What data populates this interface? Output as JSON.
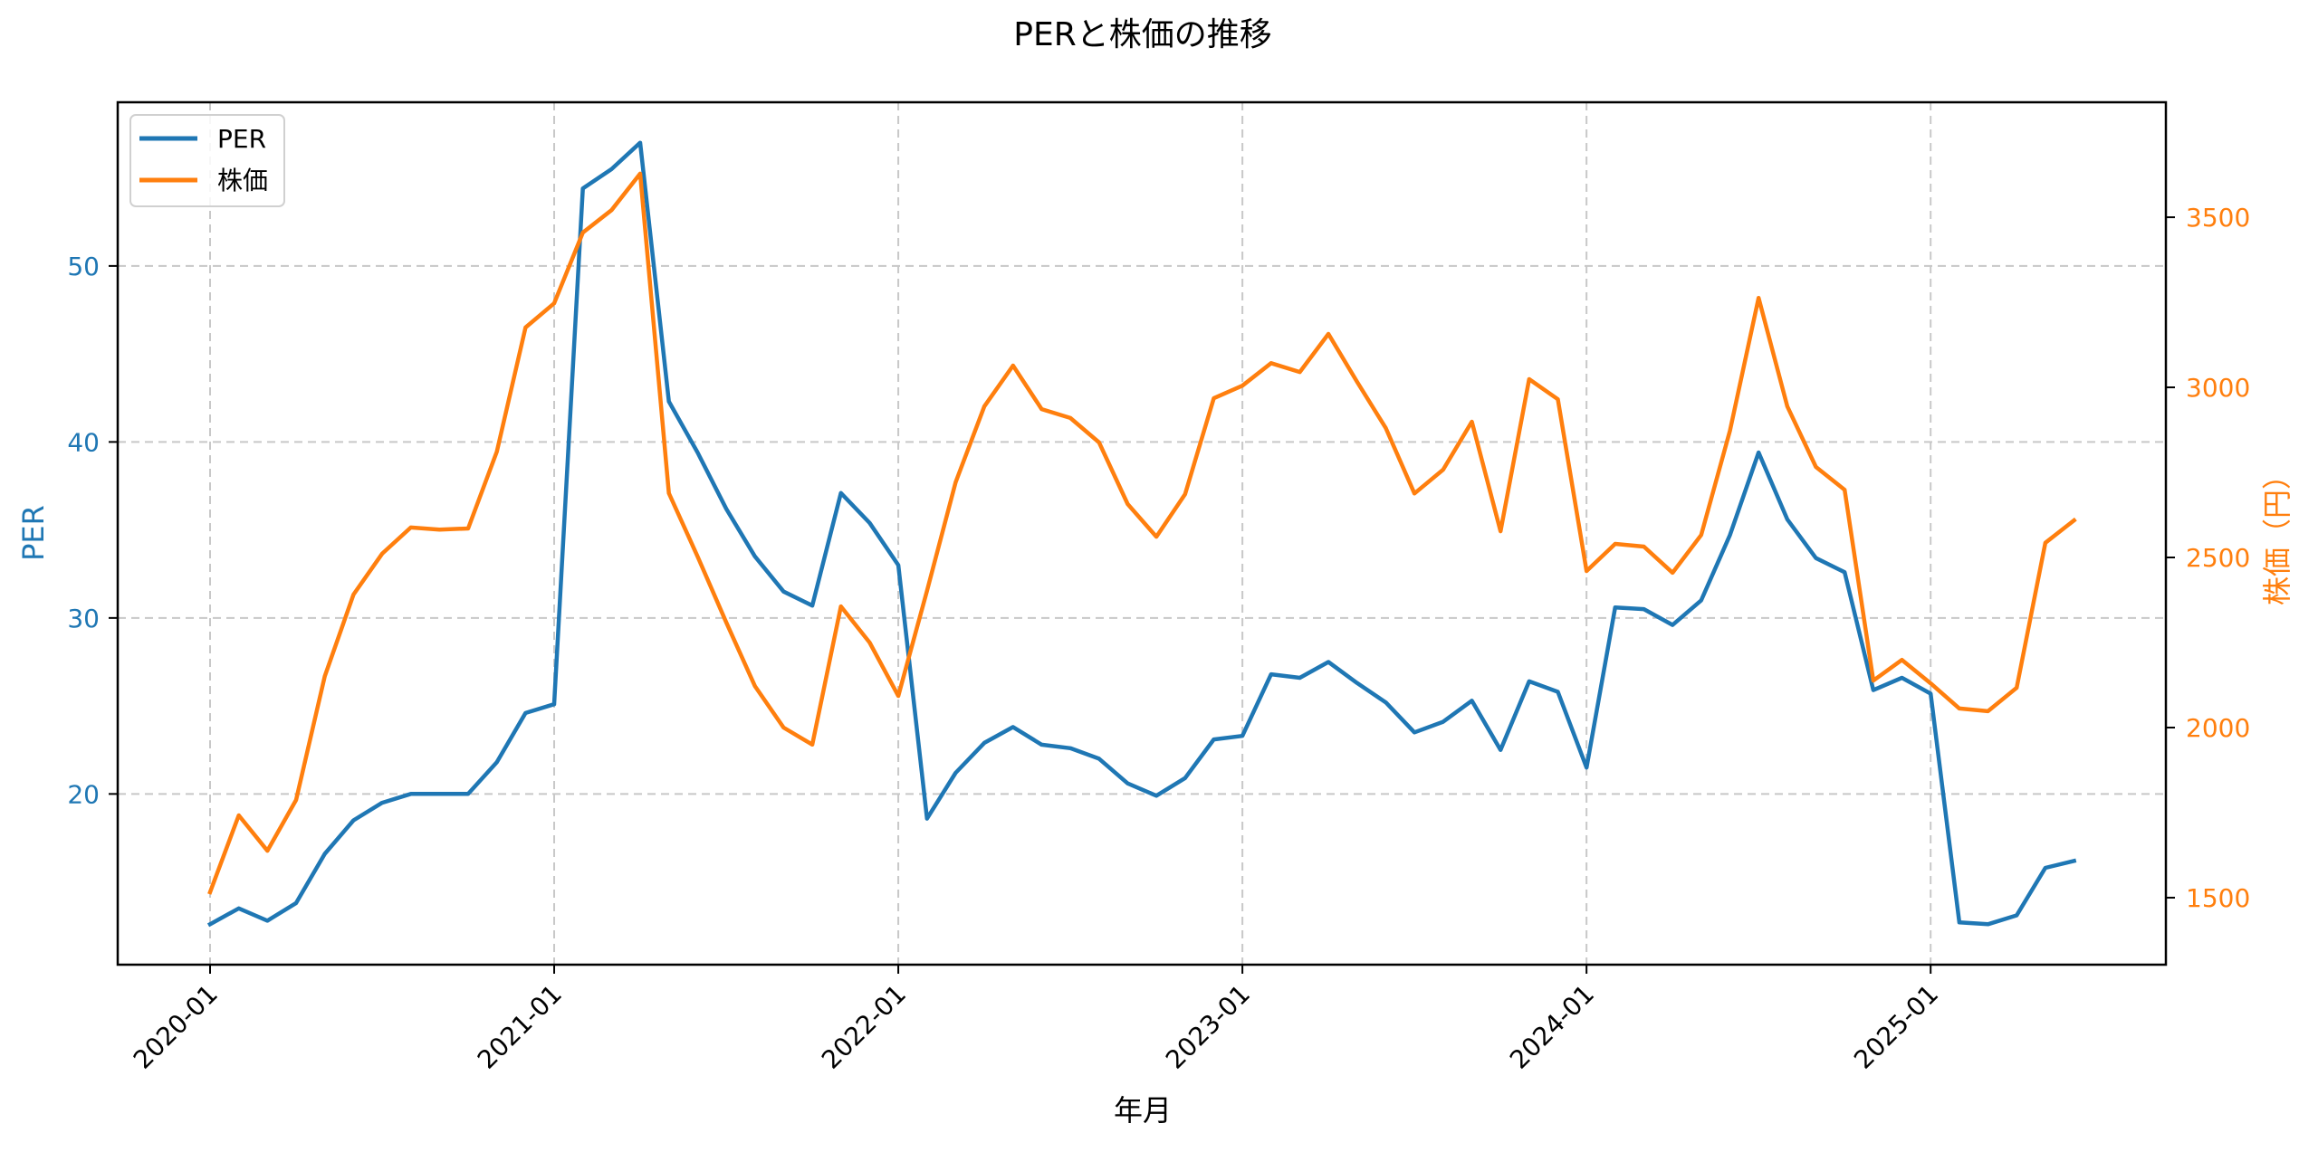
{
  "title": "PERと株価の推移",
  "colors": {
    "per": "#1f77b4",
    "price": "#ff7f0e",
    "grid": "#c8c8c8",
    "axis": "#000000"
  },
  "legend": {
    "position": "upper left",
    "entries": [
      {
        "label": "PER",
        "color": "#1f77b4"
      },
      {
        "label": "株価",
        "color": "#ff7f0e"
      }
    ]
  },
  "axes": {
    "xlabel": "年月",
    "ylabel_left": "PER",
    "ylabel_right": "株価（円）"
  },
  "chart_data": {
    "type": "line",
    "title": "PERと株価の推移",
    "xlabel": "年月",
    "ylabel": "PER",
    "ylabel_secondary": "株価（円）",
    "grid": true,
    "legend_position": "upper left",
    "x_tick_labels": [
      "2020-01",
      "2021-01",
      "2022-01",
      "2023-01",
      "2024-01",
      "2025-01"
    ],
    "y_left_ticks": [
      20,
      30,
      40,
      50
    ],
    "y_right_ticks": [
      1500,
      2000,
      2500,
      3000,
      3500
    ],
    "ylim_left": [
      10.3,
      59.3
    ],
    "ylim_right": [
      1303,
      3838
    ],
    "x": [
      "2020-01",
      "2020-02",
      "2020-03",
      "2020-04",
      "2020-05",
      "2020-06",
      "2020-07",
      "2020-08",
      "2020-09",
      "2020-10",
      "2020-11",
      "2020-12",
      "2021-01",
      "2021-02",
      "2021-03",
      "2021-04",
      "2021-05",
      "2021-06",
      "2021-07",
      "2021-08",
      "2021-09",
      "2021-10",
      "2021-11",
      "2021-12",
      "2022-01",
      "2022-02",
      "2022-03",
      "2022-04",
      "2022-05",
      "2022-06",
      "2022-07",
      "2022-08",
      "2022-09",
      "2022-10",
      "2022-11",
      "2022-12",
      "2023-01",
      "2023-02",
      "2023-03",
      "2023-04",
      "2023-05",
      "2023-06",
      "2023-07",
      "2023-08",
      "2023-09",
      "2023-10",
      "2023-11",
      "2023-12",
      "2024-01",
      "2024-02",
      "2024-03",
      "2024-04",
      "2024-05",
      "2024-06",
      "2024-07",
      "2024-08",
      "2024-09",
      "2024-10",
      "2024-11",
      "2024-12",
      "2025-01",
      "2025-02",
      "2025-03",
      "2025-04",
      "2025-05",
      "2025-06"
    ],
    "series": [
      {
        "name": "PER",
        "axis": "left",
        "color": "#1f77b4",
        "values": [
          12.6,
          13.5,
          12.8,
          13.8,
          16.6,
          18.5,
          19.5,
          20.0,
          20.0,
          20.0,
          21.8,
          24.6,
          25.1,
          54.4,
          55.5,
          57.0,
          42.3,
          39.4,
          36.2,
          33.5,
          31.5,
          30.7,
          37.1,
          35.4,
          33.0,
          18.6,
          21.2,
          22.9,
          23.8,
          22.8,
          22.6,
          22.0,
          20.6,
          19.9,
          20.9,
          23.1,
          23.3,
          26.8,
          26.6,
          27.5,
          26.3,
          25.2,
          23.5,
          24.1,
          25.3,
          22.5,
          26.4,
          25.8,
          21.5,
          30.6,
          30.5,
          29.6,
          31.0,
          34.7,
          39.4,
          35.6,
          33.4,
          32.6,
          25.9,
          26.6,
          25.7,
          12.7,
          12.6,
          13.1,
          15.8,
          16.2
        ]
      },
      {
        "name": "株価",
        "axis": "right",
        "color": "#ff7f0e",
        "values": [
          1516,
          1742,
          1638,
          1787,
          2151,
          2391,
          2511,
          2588,
          2582,
          2585,
          2811,
          3176,
          3247,
          3455,
          3521,
          3628,
          2689,
          2503,
          2309,
          2122,
          2000,
          1950,
          2356,
          2250,
          2093,
          2402,
          2721,
          2944,
          3064,
          2936,
          2910,
          2838,
          2657,
          2561,
          2686,
          2968,
          3005,
          3071,
          3045,
          3157,
          3016,
          2880,
          2688,
          2758,
          2899,
          2577,
          3024,
          2965,
          2460,
          2540,
          2532,
          2455,
          2566,
          2872,
          3263,
          2944,
          2766,
          2699,
          2138,
          2199,
          2130,
          2056,
          2048,
          2117,
          2543,
          2609
        ]
      }
    ]
  }
}
